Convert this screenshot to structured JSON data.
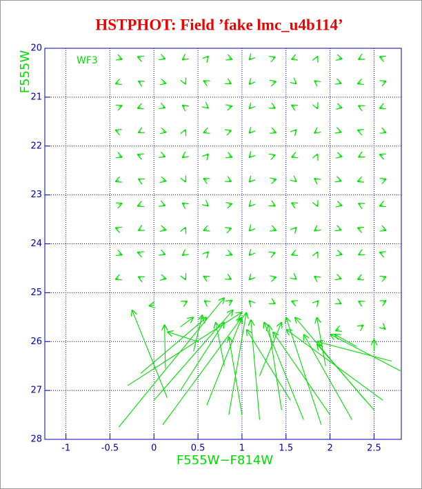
{
  "chart_data": {
    "type": "quiver",
    "title": "HSTPHOT: Field ’fake lmc_u4b114’",
    "xlabel": "F555W−F814W",
    "ylabel": "F555W",
    "annotation": "WF3",
    "color": "#00dd00",
    "axis_color": "#0000aa",
    "title_color": "#ee0000",
    "grid": true,
    "xlim": [
      -1.24,
      2.81
    ],
    "ylim": [
      28,
      20
    ],
    "xticks": [
      -1,
      -0.5,
      0,
      0.5,
      1,
      1.5,
      2,
      2.5
    ],
    "yticks": [
      20,
      21,
      22,
      23,
      24,
      25,
      26,
      27,
      28
    ],
    "x": [
      -0.4,
      -0.15,
      0.1,
      0.35,
      0.6,
      0.85,
      1.1,
      1.35,
      1.6,
      1.85,
      2.1,
      2.35,
      2.6,
      -0.4,
      -0.15,
      0.1,
      0.35,
      0.6,
      0.85,
      1.1,
      1.35,
      1.6,
      1.85,
      2.1,
      2.35,
      2.6,
      -0.4,
      -0.15,
      0.1,
      0.35,
      0.6,
      0.85,
      1.1,
      1.35,
      1.6,
      1.85,
      2.1,
      2.35,
      2.6,
      -0.4,
      -0.15,
      0.1,
      0.35,
      0.6,
      0.85,
      1.1,
      1.35,
      1.6,
      1.85,
      2.1,
      2.35,
      2.6,
      -0.4,
      -0.15,
      0.1,
      0.35,
      0.6,
      0.85,
      1.1,
      1.35,
      1.6,
      1.85,
      2.1,
      2.35,
      2.6,
      -0.4,
      -0.15,
      0.1,
      0.35,
      0.6,
      0.85,
      1.1,
      1.35,
      1.6,
      1.85,
      2.1,
      2.35,
      2.6,
      -0.4,
      -0.15,
      0.1,
      0.35,
      0.6,
      0.85,
      1.1,
      1.35,
      1.6,
      1.85,
      2.1,
      2.35,
      2.6,
      -0.4,
      -0.15,
      0.1,
      0.35,
      0.6,
      0.85,
      1.1,
      1.35,
      1.6,
      1.85,
      2.1,
      2.35,
      2.6,
      -0.4,
      -0.15,
      0.1,
      0.35,
      0.6,
      0.85,
      1.1,
      1.35,
      1.6,
      1.85,
      2.1,
      2.35,
      2.6,
      -0.4,
      -0.15,
      0.1,
      0.35,
      0.6,
      0.85,
      1.1,
      1.35,
      1.6,
      1.85,
      2.1,
      2.35,
      2.6,
      0.0,
      0.35,
      0.6,
      0.85,
      1.1,
      1.35,
      1.6,
      1.85,
      2.1,
      2.35,
      2.6,
      2.1,
      2.35,
      2.6,
      0.15,
      0.13,
      -0.4,
      -0.15,
      0.0,
      0.3,
      0.6,
      0.85,
      1.0,
      1.2,
      1.45,
      1.55,
      1.7,
      1.9,
      2.0,
      2.25,
      2.5,
      2.4,
      2.6,
      2.8,
      2.7,
      2.3,
      2.5,
      0.5,
      0.3,
      0.45,
      0.8,
      1.2,
      1.95,
      -0.3,
      0.1
    ],
    "y": [
      20.2,
      20.2,
      20.2,
      20.2,
      20.2,
      20.2,
      20.2,
      20.2,
      20.2,
      20.2,
      20.2,
      20.2,
      20.2,
      20.7,
      20.7,
      20.7,
      20.7,
      20.7,
      20.7,
      20.7,
      20.7,
      20.7,
      20.7,
      20.7,
      20.7,
      20.7,
      21.2,
      21.2,
      21.2,
      21.2,
      21.2,
      21.2,
      21.2,
      21.2,
      21.2,
      21.2,
      21.2,
      21.2,
      21.2,
      21.7,
      21.7,
      21.7,
      21.7,
      21.7,
      21.7,
      21.7,
      21.7,
      21.7,
      21.7,
      21.7,
      21.7,
      21.7,
      22.2,
      22.2,
      22.2,
      22.2,
      22.2,
      22.2,
      22.2,
      22.2,
      22.2,
      22.2,
      22.2,
      22.2,
      22.2,
      22.7,
      22.7,
      22.7,
      22.7,
      22.7,
      22.7,
      22.7,
      22.7,
      22.7,
      22.7,
      22.7,
      22.7,
      22.7,
      23.2,
      23.2,
      23.2,
      23.2,
      23.2,
      23.2,
      23.2,
      23.2,
      23.2,
      23.2,
      23.2,
      23.2,
      23.2,
      23.7,
      23.7,
      23.7,
      23.7,
      23.7,
      23.7,
      23.7,
      23.7,
      23.7,
      23.7,
      23.7,
      23.7,
      23.7,
      24.2,
      24.2,
      24.2,
      24.2,
      24.2,
      24.2,
      24.2,
      24.2,
      24.2,
      24.2,
      24.2,
      24.2,
      24.2,
      24.7,
      24.7,
      24.7,
      24.7,
      24.7,
      24.7,
      24.7,
      24.7,
      24.7,
      24.7,
      24.7,
      24.7,
      24.7,
      25.25,
      25.2,
      25.2,
      25.2,
      25.2,
      25.2,
      25.2,
      25.2,
      25.2,
      25.2,
      25.2,
      25.75,
      25.7,
      25.7,
      27.15,
      26.55,
      27.75,
      26.65,
      27.2,
      27.0,
      27.3,
      27.5,
      27.5,
      27.6,
      27.4,
      27.2,
      27.6,
      27.7,
      27.5,
      27.6,
      27.4,
      27.2,
      27.2,
      26.6,
      26.4,
      26.1,
      26.2,
      26.0,
      25.7,
      26.2,
      26.5,
      26.7,
      26.5,
      26.9,
      27.7
    ],
    "u": [
      0.04,
      -0.04,
      0.03,
      -0.03,
      0.02,
      0.04,
      -0.02,
      0.03,
      -0.04,
      0.01,
      0.04,
      -0.03,
      -0.04,
      -0.04,
      -0.03,
      0.04,
      0.01,
      -0.04,
      0.03,
      -0.02,
      0.04,
      0.02,
      -0.03,
      0.03,
      -0.04,
      0.04,
      0.04,
      -0.04,
      0.03,
      -0.03,
      0.02,
      0.04,
      -0.02,
      0.03,
      -0.04,
      0.01,
      0.04,
      -0.03,
      -0.04,
      -0.04,
      -0.03,
      0.04,
      0.01,
      -0.04,
      0.03,
      -0.02,
      0.04,
      0.02,
      -0.03,
      0.03,
      -0.04,
      0.04,
      0.04,
      -0.04,
      0.03,
      -0.03,
      0.02,
      0.04,
      -0.02,
      0.03,
      -0.04,
      0.01,
      0.04,
      -0.03,
      -0.04,
      -0.04,
      -0.03,
      0.04,
      0.01,
      -0.04,
      0.03,
      -0.02,
      0.04,
      0.02,
      -0.03,
      0.03,
      -0.04,
      0.04,
      0.04,
      -0.04,
      0.03,
      -0.03,
      0.02,
      0.04,
      -0.02,
      0.03,
      -0.04,
      0.01,
      0.04,
      -0.03,
      -0.04,
      -0.04,
      -0.03,
      0.04,
      0.01,
      -0.04,
      0.03,
      -0.02,
      0.04,
      0.02,
      -0.03,
      0.03,
      -0.04,
      0.04,
      0.04,
      -0.04,
      0.03,
      -0.03,
      0.02,
      0.04,
      -0.02,
      0.03,
      -0.04,
      0.01,
      0.04,
      -0.03,
      -0.04,
      -0.04,
      -0.03,
      0.04,
      0.01,
      -0.04,
      0.03,
      -0.02,
      0.04,
      0.02,
      -0.03,
      0.03,
      -0.04,
      0.04,
      -0.06,
      0.03,
      -0.03,
      0.04,
      -0.02,
      0.03,
      -0.04,
      0.02,
      0.03,
      -0.03,
      0.04,
      -0.04,
      0.03,
      0.03,
      -0.4,
      -0.01,
      1.2,
      0.75,
      0.9,
      0.5,
      0.4,
      0.2,
      -0.15,
      -0.1,
      -0.15,
      -0.5,
      -0.45,
      -0.4,
      -0.65,
      -0.55,
      -0.65,
      -0.8,
      -1.1,
      -0.8,
      -0.85,
      -0.25,
      0,
      -0.35,
      0.15,
      0.1,
      -0.1,
      0.25,
      -0.1,
      1.3,
      0.9
    ],
    "v": [
      0.03,
      -0.03,
      0.02,
      0.04,
      -0.04,
      0.03,
      0.04,
      -0.02,
      0.03,
      -0.04,
      0.02,
      0.03,
      -0.03,
      0.03,
      -0.03,
      0.02,
      0.04,
      -0.04,
      0.03,
      0.04,
      -0.02,
      0.03,
      -0.04,
      0.02,
      0.03,
      -0.03,
      -0.03,
      0.03,
      0.02,
      -0.04,
      0.03,
      -0.02,
      0.04,
      0.03,
      -0.04,
      0.04,
      0.02,
      -0.03,
      0.03,
      -0.03,
      0.03,
      0.02,
      -0.04,
      0.03,
      -0.02,
      0.04,
      0.03,
      -0.04,
      0.04,
      0.02,
      -0.03,
      0.03,
      0.03,
      -0.03,
      0.02,
      0.04,
      -0.04,
      0.03,
      0.04,
      -0.02,
      0.03,
      -0.04,
      0.02,
      0.03,
      -0.03,
      0.03,
      -0.03,
      0.02,
      0.04,
      -0.04,
      0.03,
      0.04,
      -0.02,
      0.03,
      -0.04,
      0.02,
      0.03,
      -0.03,
      -0.03,
      0.03,
      0.02,
      -0.04,
      0.03,
      -0.02,
      0.04,
      0.03,
      -0.04,
      0.04,
      0.02,
      -0.03,
      0.03,
      -0.03,
      0.03,
      0.02,
      -0.04,
      0.03,
      -0.02,
      0.04,
      0.03,
      -0.04,
      0.04,
      0.02,
      -0.03,
      0.03,
      0.03,
      -0.03,
      0.02,
      0.04,
      -0.04,
      0.03,
      0.04,
      -0.02,
      0.03,
      -0.04,
      0.02,
      0.03,
      -0.03,
      0.03,
      -0.03,
      0.02,
      0.04,
      -0.04,
      0.03,
      0.04,
      -0.02,
      0.03,
      -0.04,
      0.02,
      0.03,
      -0.03,
      0.02,
      -0.03,
      -0.04,
      -0.05,
      -0.04,
      0.03,
      -0.03,
      -0.04,
      0.03,
      -0.03,
      -0.04,
      0.03,
      -0.04,
      0.05,
      -1.8,
      -0.9,
      -2.65,
      -1.15,
      -1.85,
      -1.4,
      -1.8,
      -2.1,
      -1.6,
      -2.05,
      -1.75,
      -1.45,
      -2.0,
      -2.2,
      -1.7,
      -1.75,
      -1.35,
      -1.7,
      -1.45,
      -0.75,
      -0.4,
      -0.25,
      -0.25,
      -0.2,
      -0.2,
      -0.75,
      -0.9,
      -1.1,
      -1.0,
      -1.5,
      -2.2
    ]
  }
}
